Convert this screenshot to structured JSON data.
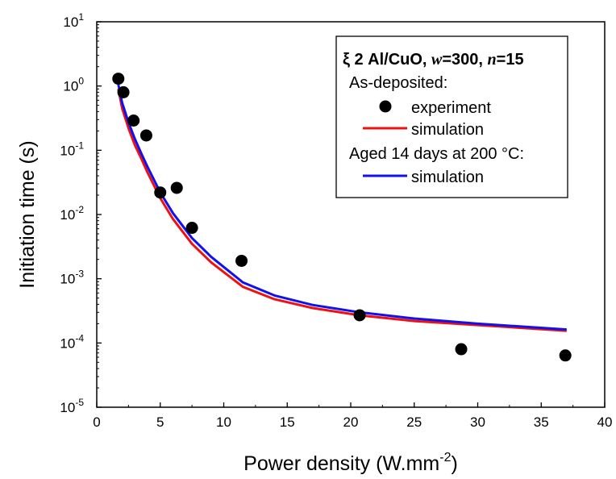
{
  "chart_data": {
    "type": "scatter",
    "xlabel": "Power density (W.mm",
    "xlabel_sup": "-2",
    "xlabel_end": ")",
    "ylabel": "Initiation time (s)",
    "xlim": [
      0,
      40
    ],
    "ylim": [
      1e-05,
      10
    ],
    "yscale": "log",
    "grid": false,
    "legend_position": "top-right",
    "x_ticks": [
      0,
      5,
      10,
      15,
      20,
      25,
      30,
      35,
      40
    ],
    "y_ticks": [
      {
        "value": 10.0,
        "base": "10",
        "exp": "1"
      },
      {
        "value": 1.0,
        "base": "10",
        "exp": "0"
      },
      {
        "value": 0.1,
        "base": "10",
        "exp": "-1"
      },
      {
        "value": 0.01,
        "base": "10",
        "exp": "-2"
      },
      {
        "value": 0.001,
        "base": "10",
        "exp": "-3"
      },
      {
        "value": 0.0001,
        "base": "10",
        "exp": "-4"
      },
      {
        "value": 1e-05,
        "base": "10",
        "exp": "-5"
      }
    ],
    "legend": {
      "title_prefix": "ξ 2 Al/CuO, ",
      "title_w": "w",
      "title_w_value": "=300, ",
      "title_n": "n",
      "title_n_value": "=15",
      "group1": "As-deposited:",
      "group2": "Aged 14 days at 200 °C:"
    },
    "series": [
      {
        "name": "experiment",
        "kind": "scatter",
        "color": "#000000",
        "x": [
          1.7,
          2.1,
          2.9,
          3.9,
          5.0,
          6.3,
          7.5,
          11.4,
          20.7,
          28.7,
          36.9
        ],
        "y": [
          1.3,
          0.8,
          0.29,
          0.17,
          0.022,
          0.026,
          0.0062,
          0.0019,
          0.00027,
          8e-05,
          6.4e-05
        ]
      },
      {
        "name": "simulation",
        "kind": "line",
        "color": "#ee1111",
        "x": [
          1.7,
          2.0,
          2.5,
          3.0,
          3.5,
          4.0,
          5.0,
          6.0,
          7.5,
          9.0,
          11.5,
          14.0,
          17.0,
          20.7,
          25.0,
          30.0,
          37.0
        ],
        "y": [
          0.9,
          0.45,
          0.22,
          0.12,
          0.075,
          0.045,
          0.018,
          0.0085,
          0.0035,
          0.0018,
          0.00075,
          0.00048,
          0.00035,
          0.00027,
          0.00022,
          0.00019,
          0.000155
        ]
      },
      {
        "name": "simulation",
        "kind": "line",
        "color": "#1111ee",
        "x": [
          1.7,
          2.0,
          2.5,
          3.0,
          3.5,
          4.0,
          5.0,
          6.0,
          7.5,
          9.0,
          11.5,
          14.0,
          17.0,
          20.7,
          25.0,
          30.0,
          37.0
        ],
        "y": [
          1.05,
          0.55,
          0.27,
          0.15,
          0.09,
          0.055,
          0.022,
          0.0105,
          0.0043,
          0.0022,
          0.00088,
          0.00055,
          0.00039,
          0.0003,
          0.00024,
          0.0002,
          0.000162
        ]
      }
    ]
  }
}
